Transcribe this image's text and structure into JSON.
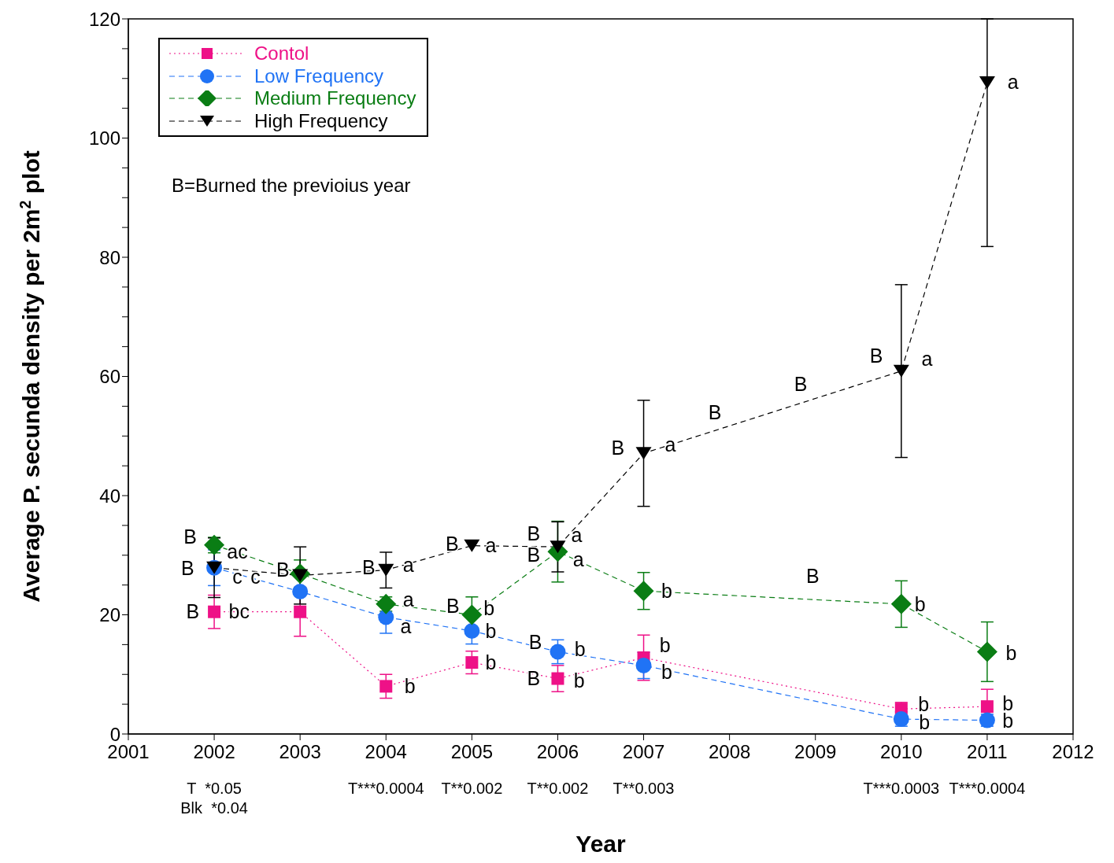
{
  "chart_data": {
    "type": "line",
    "ylabel": "Average P. secunda density per 2m$^{2}$ plot",
    "xlabel": "Year",
    "xlim": [
      2001,
      2012
    ],
    "xticks": [
      2001,
      2002,
      2003,
      2004,
      2005,
      2006,
      2007,
      2008,
      2009,
      2010,
      2011,
      2012
    ],
    "ylim": [
      0,
      120
    ],
    "yticks": [
      0,
      {
        "value": 5,
        "label": null
      },
      {
        "value": 10,
        "label": null
      },
      {
        "value": 15,
        "label": null
      },
      20,
      {
        "value": 25,
        "label": null
      },
      {
        "value": 30,
        "label": null
      },
      {
        "value": 35,
        "label": null
      },
      40,
      {
        "value": 45,
        "label": null
      },
      {
        "value": 50,
        "label": null
      },
      {
        "value": 55,
        "label": null
      },
      60,
      {
        "value": 65,
        "label": null
      },
      {
        "value": 70,
        "label": null
      },
      {
        "value": 75,
        "label": null
      },
      80,
      {
        "value": 85,
        "label": null
      },
      {
        "value": 90,
        "label": null
      },
      {
        "value": 95,
        "label": null
      },
      100,
      {
        "value": 105,
        "label": null
      },
      {
        "value": 110,
        "label": null
      },
      {
        "value": 115,
        "label": null
      },
      120
    ],
    "x": [
      2002,
      2003,
      2004,
      2005,
      2006,
      2007,
      2010,
      2011
    ],
    "legend": "top left",
    "series": [
      {
        "name": "Contol",
        "color": "#ee1187",
        "marker": "square",
        "line_style": "dotted",
        "values": [
          20.5,
          20.5,
          8.0,
          12.0,
          9.3,
          12.8,
          4.2,
          4.6
        ],
        "errors": [
          2.8,
          4.1,
          2.0,
          1.9,
          2.2,
          3.8,
          1.1,
          2.9
        ]
      },
      {
        "name": "Low Frequency",
        "color": "#2073f5",
        "marker": "circle",
        "line_style": "dashed",
        "values": [
          27.9,
          23.9,
          19.6,
          17.3,
          13.8,
          11.5,
          2.5,
          2.3
        ],
        "errors": [
          3.0,
          null,
          2.7,
          2.2,
          2.0,
          2.2,
          1.2,
          1.0
        ]
      },
      {
        "name": "Medium Frequency",
        "color": "#0a7d14",
        "marker": "diamond",
        "line_style": "dashed",
        "values": [
          31.7,
          26.9,
          21.8,
          20.0,
          30.6,
          24.0,
          21.8,
          13.8
        ],
        "errors": [
          1.3,
          2.3,
          1.2,
          3.0,
          5.1,
          3.1,
          3.9,
          5.0
        ]
      },
      {
        "name": "High Frequency",
        "color": "#000000",
        "marker": "triangle",
        "line_style": "dashed",
        "values": [
          27.9,
          26.6,
          27.5,
          31.6,
          31.4,
          47.1,
          60.9,
          109.3
        ],
        "errors": [
          5.0,
          4.8,
          3.0,
          null,
          4.2,
          8.9,
          14.5,
          [
            81.8,
            120
          ]
        ]
      }
    ],
    "annotations": [
      "B=Burned the previoius year",
      "T  *0.05",
      "Blk  *0.04",
      "T***0.0004",
      "T**0.002",
      "T**0.002",
      "T**0.003",
      "T***0.0003",
      "T***0.0004",
      "B",
      "ac",
      "B",
      "c",
      "c",
      "B",
      "bc",
      "B",
      "B",
      "a",
      "a",
      "a",
      "b",
      "B",
      "a",
      "B",
      "b",
      "b",
      "b",
      "B",
      "a",
      "B",
      "a",
      "B",
      "b",
      "B",
      "b",
      "B",
      "a",
      "b",
      "b",
      "b",
      "B",
      "B",
      "B",
      "B",
      "a",
      "b",
      "b",
      "b",
      "a",
      "b",
      "b",
      "b"
    ]
  }
}
